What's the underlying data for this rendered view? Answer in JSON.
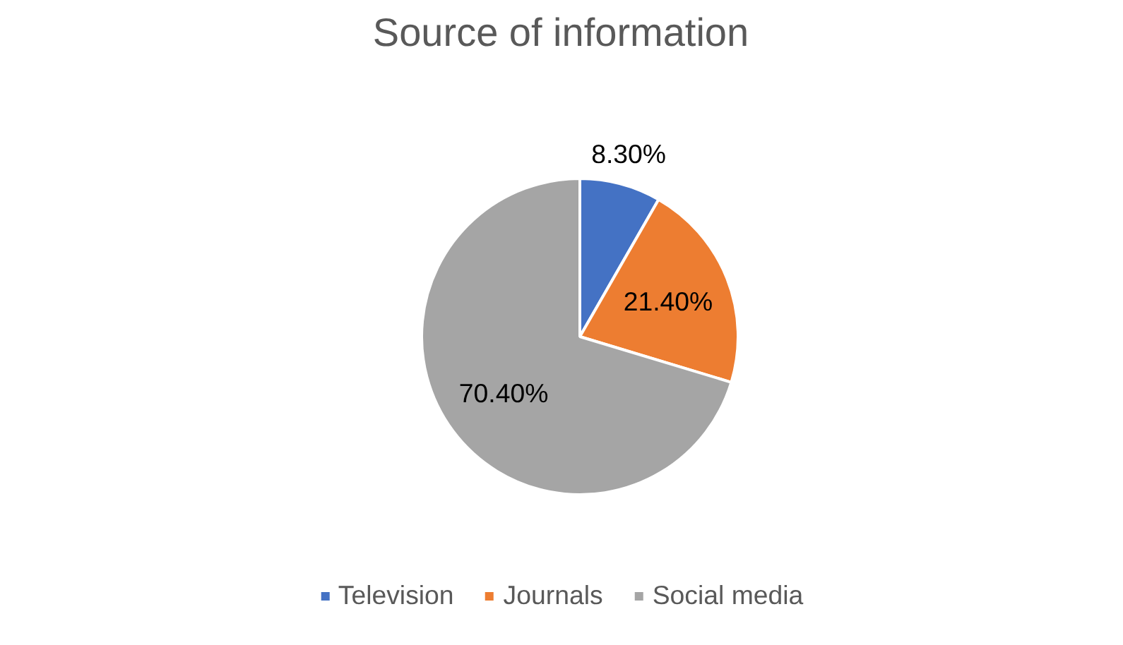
{
  "chart_data": {
    "type": "pie",
    "title": "Source of information",
    "categories": [
      "Television",
      "Journals",
      "Social media"
    ],
    "values": [
      8.3,
      21.4,
      70.4
    ],
    "value_labels": [
      "8.30%",
      "21.40%",
      "70.40%"
    ],
    "colors": [
      "#4472c4",
      "#ed7d31",
      "#a5a5a5"
    ],
    "legend": "bottom"
  }
}
